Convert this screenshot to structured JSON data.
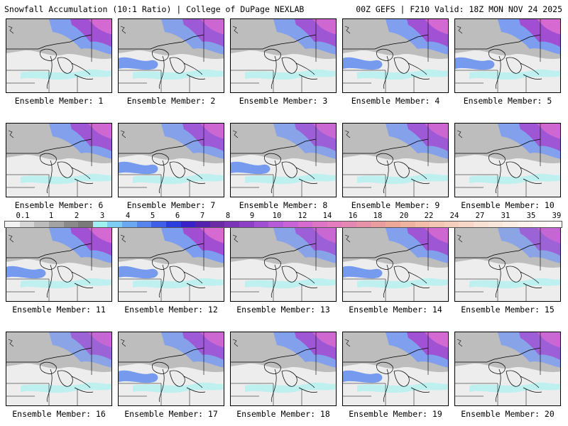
{
  "header": {
    "left": "Snowfall Accumulation (10:1 Ratio) | College of DuPage NEXLAB",
    "right": "00Z GEFS | F210 Valid: 18Z MON NOV 24 2025"
  },
  "legend": {
    "labels": [
      "0.1",
      "1",
      "2",
      "3",
      "4",
      "5",
      "6",
      "7",
      "8",
      "9",
      "10",
      "12",
      "14",
      "16",
      "18",
      "20",
      "22",
      "24",
      "27",
      "31",
      "35",
      "39"
    ],
    "colors": [
      "#f2f2f2",
      "#d6d6d6",
      "#bcbcbc",
      "#a3a3a3",
      "#8a8a8a",
      "#7a7a7a",
      "#9ff1f1",
      "#7ecdf4",
      "#6aa8f2",
      "#5684ee",
      "#3f5fe9",
      "#2a3ee0",
      "#3a20c8",
      "#5420b0",
      "#6b2aa6",
      "#7b33b8",
      "#8d40c6",
      "#a24ed2",
      "#b65ad9",
      "#c962d6",
      "#d66ad0",
      "#df73c6",
      "#e47cbd",
      "#e487b2",
      "#e792a8",
      "#ea9d9f",
      "#eda898",
      "#f0b39f",
      "#f2bda9",
      "#f4c6b4",
      "#f5cfbe",
      "#f7d8c8",
      "#f8e0d2",
      "#f9e7db",
      "#fbeee5",
      "#fcf3ec",
      "#fdf8f4",
      "#fefbf8"
    ]
  },
  "panels": [
    {
      "label": "Ensemble Member: 1"
    },
    {
      "label": "Ensemble Member: 2"
    },
    {
      "label": "Ensemble Member: 3"
    },
    {
      "label": "Ensemble Member: 4"
    },
    {
      "label": "Ensemble Member: 5"
    },
    {
      "label": "Ensemble Member: 6"
    },
    {
      "label": "Ensemble Member: 7"
    },
    {
      "label": "Ensemble Member: 8"
    },
    {
      "label": "Ensemble Member: 9"
    },
    {
      "label": "Ensemble Member: 10"
    },
    {
      "label": "Ensemble Member: 11"
    },
    {
      "label": "Ensemble Member: 12"
    },
    {
      "label": "Ensemble Member: 13"
    },
    {
      "label": "Ensemble Member: 14"
    },
    {
      "label": "Ensemble Member: 15"
    },
    {
      "label": "Ensemble Member: 16"
    },
    {
      "label": "Ensemble Member: 17"
    },
    {
      "label": "Ensemble Member: 18"
    },
    {
      "label": "Ensemble Member: 19"
    },
    {
      "label": "Ensemble Member: 20"
    }
  ]
}
